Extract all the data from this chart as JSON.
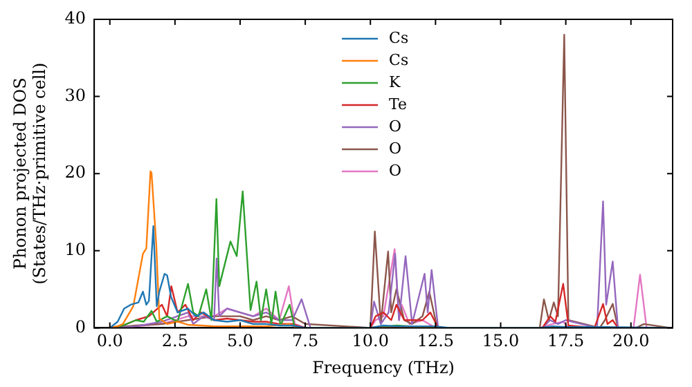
{
  "chart_data": {
    "type": "line",
    "xlabel": "Frequency (THz)",
    "ylabel": "Phonon projected DOS\n(States/THz·primitive cell)",
    "xlim": [
      -0.6,
      21.6
    ],
    "ylim": [
      0,
      40
    ],
    "xticks": [
      {
        "value": 0,
        "label": "0.0"
      },
      {
        "value": 2.5,
        "label": "2.5"
      },
      {
        "value": 5,
        "label": "5.0"
      },
      {
        "value": 7.5,
        "label": "7.5"
      },
      {
        "value": 10,
        "label": "10.0"
      },
      {
        "value": 12.5,
        "label": "12.5"
      },
      {
        "value": 15,
        "label": "15.0"
      },
      {
        "value": 17.5,
        "label": "17.5"
      },
      {
        "value": 20,
        "label": "20.0"
      }
    ],
    "yticks": [
      0,
      10,
      20,
      30,
      40
    ],
    "grid": false,
    "legend": "top",
    "marker": "none",
    "line_style": "solid",
    "series": [
      {
        "name": "Cs",
        "color": "#1f77b4",
        "x": [
          0,
          0.3,
          0.55,
          0.8,
          1.1,
          1.27,
          1.4,
          1.5,
          1.67,
          1.8,
          1.9,
          2.1,
          2.2,
          2.35,
          2.6,
          3.0,
          3.3,
          3.6,
          4.0,
          4.5,
          5.0,
          5.5,
          6.0,
          6.5,
          7.0,
          7.5,
          10,
          10.5,
          11,
          12.5,
          13,
          16.5,
          17,
          17.5,
          19,
          21.5
        ],
        "values": [
          0,
          0.8,
          2.5,
          3.0,
          3.3,
          4.7,
          3.0,
          3.5,
          13.2,
          2.8,
          4.7,
          7.0,
          6.8,
          4.0,
          2.0,
          2.5,
          1.5,
          2.0,
          1.0,
          0.8,
          1.0,
          0.5,
          0.5,
          0.3,
          0.3,
          0,
          0,
          0.3,
          0.2,
          0.2,
          0,
          0,
          0.2,
          0.1,
          0.1,
          0
        ]
      },
      {
        "name": "Cs",
        "color": "#ff7f0e",
        "x": [
          0,
          0.3,
          0.5,
          0.9,
          1.27,
          1.4,
          1.56,
          1.6,
          1.78,
          1.9,
          2.2,
          2.6,
          3.0,
          3.5,
          4.0,
          5.0,
          6.0,
          6.9,
          7.1,
          7.5,
          21.5
        ],
        "values": [
          0,
          0.2,
          0.5,
          2.8,
          9.6,
          10.3,
          20.3,
          20.1,
          10.9,
          1.2,
          0.5,
          0.8,
          0.4,
          0.3,
          0.2,
          0.2,
          0.2,
          0.5,
          0.1,
          0,
          0
        ]
      },
      {
        "name": "K",
        "color": "#2ca02c",
        "x": [
          0,
          0.5,
          1.0,
          1.3,
          1.6,
          1.8,
          2.2,
          2.6,
          3.0,
          3.2,
          3.4,
          3.7,
          3.9,
          4.09,
          4.2,
          4.63,
          4.87,
          5.1,
          5.4,
          5.63,
          5.8,
          6.0,
          6.2,
          6.36,
          6.55,
          6.9,
          7.1,
          7.5,
          10,
          11,
          12.5,
          21.5
        ],
        "values": [
          0,
          0.3,
          1.0,
          0.8,
          2.2,
          0.8,
          1.5,
          0.8,
          5.7,
          2.0,
          1.5,
          5.0,
          1.0,
          16.7,
          5.4,
          11.2,
          9.3,
          17.7,
          2.3,
          6.0,
          1.0,
          5.0,
          0.5,
          4.7,
          0.3,
          3.0,
          0,
          0,
          0,
          0.3,
          0,
          0
        ]
      },
      {
        "name": "Te",
        "color": "#d62728",
        "x": [
          0,
          0.5,
          1.0,
          1.5,
          2.0,
          2.2,
          2.36,
          2.6,
          2.9,
          3.2,
          3.5,
          4.0,
          4.5,
          5.0,
          5.5,
          6.0,
          6.5,
          7.0,
          7.5,
          10.0,
          10.2,
          10.5,
          10.8,
          11.0,
          11.3,
          12.0,
          12.3,
          12.6,
          16.6,
          16.9,
          17.1,
          17.4,
          17.6,
          18.6,
          18.93,
          19.1,
          19.3,
          19.5,
          21.5
        ],
        "values": [
          0,
          0.3,
          1.0,
          1.5,
          3.0,
          1.5,
          5.4,
          2.0,
          3.0,
          1.0,
          2.0,
          1.0,
          1.2,
          1.0,
          0.8,
          0.8,
          0.5,
          0.5,
          0,
          0,
          1.5,
          2.0,
          1.0,
          3.0,
          1.0,
          1.0,
          2.0,
          0,
          0,
          1.5,
          0.8,
          5.7,
          0.3,
          0,
          3.1,
          0.5,
          1.0,
          0,
          0
        ]
      },
      {
        "name": "O",
        "color": "#9467bd",
        "x": [
          0,
          1.0,
          2.0,
          3.0,
          3.2,
          3.6,
          4.0,
          4.1,
          4.2,
          4.5,
          5.0,
          5.5,
          6.0,
          6.5,
          7.0,
          7.36,
          7.7,
          10.0,
          10.14,
          10.4,
          10.7,
          10.95,
          11.1,
          11.35,
          11.6,
          12.08,
          12.2,
          12.35,
          12.6,
          16.6,
          16.9,
          17.2,
          17.5,
          18.7,
          18.93,
          19.05,
          19.3,
          19.5,
          21.5
        ],
        "values": [
          0,
          0.2,
          0.8,
          2.0,
          0.5,
          1.5,
          1.0,
          9.0,
          1.5,
          2.5,
          2.0,
          1.5,
          2.0,
          1.0,
          1.0,
          3.7,
          0,
          0,
          3.4,
          0.5,
          2.0,
          9.6,
          1.0,
          9.3,
          0.5,
          7.0,
          2.0,
          7.5,
          0,
          0,
          1.0,
          0.5,
          1.0,
          0,
          16.4,
          3.0,
          8.6,
          0,
          0
        ]
      },
      {
        "name": "O",
        "color": "#8c564b",
        "x": [
          0,
          1.0,
          2.0,
          3.0,
          4.0,
          4.5,
          5.0,
          5.5,
          6.0,
          6.5,
          7.0,
          7.5,
          10.0,
          10.17,
          10.4,
          10.68,
          10.8,
          11.0,
          11.3,
          11.6,
          12.0,
          12.26,
          12.5,
          12.6,
          16.5,
          16.66,
          16.85,
          17.04,
          17.2,
          17.44,
          17.6,
          18.8,
          19.0,
          19.3,
          19.5,
          20.2,
          20.5,
          21.5
        ],
        "values": [
          0,
          0.3,
          0.5,
          1.0,
          1.5,
          1.5,
          1.5,
          1.0,
          1.5,
          1.0,
          1.5,
          0.5,
          0,
          12.5,
          0.5,
          9.9,
          2.0,
          5.0,
          1.0,
          0.5,
          1.5,
          4.7,
          1.0,
          0,
          0,
          3.7,
          1.0,
          3.3,
          1.5,
          38.0,
          1.0,
          0,
          1.0,
          3.1,
          0,
          0,
          0.5,
          0
        ]
      },
      {
        "name": "O",
        "color": "#e377c2",
        "x": [
          0,
          1.0,
          2.0,
          3.0,
          4.0,
          4.5,
          5.0,
          5.5,
          6.0,
          6.5,
          6.87,
          7.1,
          7.5,
          10.0,
          10.2,
          10.5,
          10.93,
          11.1,
          11.2,
          11.5,
          12.0,
          12.5,
          16.5,
          17.0,
          17.4,
          17.6,
          20.1,
          20.35,
          20.6,
          21.5
        ],
        "values": [
          0,
          0.2,
          0.5,
          1.5,
          1.5,
          2.5,
          2.0,
          1.5,
          2.5,
          1.0,
          5.4,
          0.5,
          0,
          0,
          1.0,
          1.5,
          10.2,
          1.0,
          3.0,
          0.5,
          1.0,
          0,
          0,
          0.5,
          0.8,
          0,
          0,
          6.9,
          0,
          0
        ]
      }
    ]
  }
}
